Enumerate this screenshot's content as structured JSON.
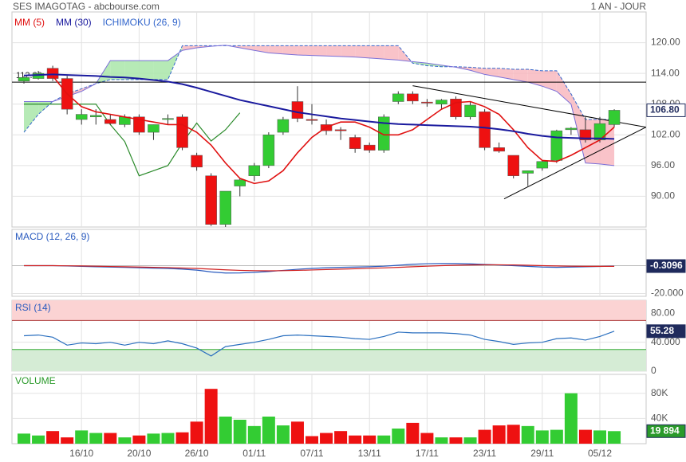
{
  "chart_data": [
    {
      "type": "candlestick",
      "title": "SES IMAGOTAG - abcbourse.com",
      "period": "1 AN - JOUR",
      "open": [
        112.5,
        113,
        115,
        113,
        105,
        105.5,
        105,
        104,
        105.5,
        102.5,
        105,
        105.5,
        98,
        94,
        84.5,
        92,
        94,
        96,
        102.5,
        108.5,
        105,
        104,
        103,
        101.5,
        100,
        99,
        108.5,
        110,
        108.4,
        108,
        109,
        105.5,
        106.5,
        99.5,
        98,
        94.5,
        95.5,
        97,
        103,
        103,
        101,
        104
      ],
      "high": [
        113.5,
        114.5,
        115.5,
        113.5,
        107,
        107,
        106,
        106,
        106,
        104,
        106,
        106,
        98.5,
        94.5,
        91,
        93.5,
        96.5,
        102.5,
        105.5,
        111.5,
        108,
        105,
        103.5,
        102,
        100.5,
        106,
        110.5,
        110.5,
        109,
        109,
        109.5,
        108.5,
        107,
        100.5,
        98,
        95,
        97,
        103,
        103.5,
        105.5,
        105.5,
        107
      ],
      "low": [
        112,
        112.8,
        112.5,
        106,
        104,
        104,
        104,
        103.5,
        102,
        101,
        104,
        99,
        95,
        84.2,
        84,
        90,
        93,
        95.5,
        102,
        104.5,
        104,
        102,
        101,
        98.5,
        98.5,
        98.5,
        108,
        108,
        107.5,
        107,
        105,
        105,
        99,
        98.5,
        93.5,
        92,
        95,
        96.5,
        102,
        100.5,
        100.5,
        103.5
      ],
      "close": [
        113.2,
        114,
        113,
        107,
        106,
        105.8,
        104.2,
        105.5,
        102.5,
        104,
        105.2,
        99.5,
        95.7,
        84.5,
        91,
        93.2,
        96,
        102,
        105,
        105.2,
        104.8,
        102.8,
        102.8,
        99.3,
        99,
        105.5,
        110,
        108.6,
        108.2,
        108.8,
        105.5,
        107.8,
        99.5,
        98.8,
        94,
        95,
        96.8,
        102.8,
        103.3,
        101,
        104.2,
        106.8
      ],
      "up_color": "#33cc33",
      "down_color": "#ee1111",
      "last_value_label": "106.80",
      "series": [
        {
          "name": "MM (5)",
          "color": "#e01010",
          "values": [
            null,
            null,
            113.5,
            110,
            107.5,
            106.5,
            106,
            105.5,
            105,
            104.5,
            104,
            104,
            102.5,
            100,
            96.5,
            93.5,
            92.5,
            93,
            95,
            98.5,
            101.5,
            103.5,
            104.5,
            104.5,
            103.5,
            102,
            102,
            103,
            105,
            107,
            108.3,
            108.5,
            107.5,
            106,
            103,
            99.5,
            97,
            96.8,
            98,
            99.5,
            101,
            103.5
          ]
        },
        {
          "name": "MM (30)",
          "color": "#1a1a9e",
          "values": [
            113.6,
            113.7,
            113.8,
            113.7,
            113.6,
            113.5,
            113.3,
            113.2,
            113,
            112.7,
            112.4,
            111.9,
            111.2,
            110.4,
            109.6,
            108.8,
            108.2,
            107.6,
            107,
            106.4,
            106,
            105.6,
            105.2,
            104.9,
            104.6,
            104.3,
            104.1,
            104,
            103.9,
            103.8,
            103.7,
            103.6,
            103.4,
            103.1,
            102.7,
            102.2,
            101.8,
            101.5,
            101.4,
            101.3,
            101.3,
            101.2
          ]
        }
      ],
      "ichimoku": {
        "name": "ICHIMOKU (26, 9)",
        "color": "#3366cc",
        "span_b_color": "#7a6fd8",
        "lagging_color": "#2a8a2a",
        "bull_fill": "#a9e6a9",
        "bear_fill": "#f8b8c0",
        "span_a": [
          102.5,
          106,
          108.5,
          110,
          111,
          112,
          112.8,
          112.8,
          112.8,
          112.8,
          112.8,
          119.4,
          119.4,
          119.4,
          119.4,
          119.4,
          119.4,
          119.4,
          119.4,
          119.4,
          119.4,
          119.4,
          119.4,
          119.4,
          119.4,
          119.4,
          119.4,
          116,
          115.5,
          115.3,
          115.3,
          115.2,
          115,
          115,
          114.8,
          114.8,
          114.5,
          114.5,
          110,
          105,
          105,
          105
        ],
        "span_b": [
          108.5,
          108.5,
          108.5,
          109.5,
          110.5,
          112,
          116.5,
          116.5,
          116.5,
          116.5,
          116.5,
          118.5,
          119,
          119.3,
          119.5,
          119,
          118.5,
          118,
          117.8,
          117.6,
          117.5,
          117.4,
          117.3,
          117.2,
          117,
          116.8,
          116.6,
          116.3,
          116,
          115.6,
          115.2,
          114.6,
          113.8,
          113.3,
          112.8,
          112.3,
          111.5,
          110.5,
          108,
          96.5,
          96.3,
          96
        ],
        "lagging": [
          108,
          108,
          108,
          108,
          108,
          108,
          104,
          100.7,
          94,
          95,
          96,
          100.4,
          104.3,
          100.8,
          103,
          106.3,
          null,
          null,
          null,
          null,
          null,
          null,
          null,
          null,
          null,
          null,
          null,
          null,
          null,
          null,
          null,
          null,
          null,
          null,
          null,
          null,
          null,
          null,
          null,
          null,
          null,
          null
        ]
      },
      "hlines": [
        {
          "value": 112.3,
          "label": "112.30"
        }
      ],
      "trendlines": [
        {
          "x": [
            27,
            43.2
          ],
          "y": [
            111.6,
            103.5
          ]
        },
        {
          "x": [
            33.35,
            43.2
          ],
          "y": [
            89.5,
            103.5
          ]
        }
      ],
      "ylim": [
        84,
        126
      ],
      "yticks": [
        {
          "value": 90,
          "label": "90.00"
        },
        {
          "value": 96,
          "label": "96.00"
        },
        {
          "value": 102,
          "label": "102.00"
        },
        {
          "value": 108,
          "label": "108.00"
        },
        {
          "value": 114,
          "label": "114.00"
        },
        {
          "value": 120,
          "label": "120.00"
        }
      ],
      "grid": true
    },
    {
      "type": "line",
      "title": "MACD (12, 26, 9)",
      "ylim": [
        -22,
        26
      ],
      "yticks": [
        {
          "value": -20,
          "label": "-20.000"
        }
      ],
      "zero": 0,
      "last_value_label": "-0.3096",
      "tag_color": "#1f2a5c",
      "series": [
        {
          "color": "#2a5bbf",
          "values": [
            0,
            0,
            0,
            -0.2,
            -0.5,
            -0.8,
            -1,
            -1.2,
            -1.5,
            -1.8,
            -2,
            -2.5,
            -3.2,
            -4.5,
            -5.3,
            -5.2,
            -4.8,
            -4.2,
            -3.4,
            -2.6,
            -2,
            -1.5,
            -1.2,
            -1,
            -0.8,
            -0.4,
            0.3,
            1,
            1.4,
            1.5,
            1.5,
            1.3,
            0.9,
            0.5,
            0,
            -0.5,
            -1,
            -1.2,
            -1,
            -0.8,
            -0.6,
            -0.3096
          ]
        },
        {
          "color": "#d02020",
          "values": [
            0,
            0,
            0,
            -0.1,
            -0.2,
            -0.4,
            -0.6,
            -0.8,
            -1,
            -1.2,
            -1.4,
            -1.7,
            -2,
            -2.5,
            -3,
            -3.4,
            -3.6,
            -3.7,
            -3.6,
            -3.4,
            -3.1,
            -2.8,
            -2.5,
            -2.2,
            -1.9,
            -1.6,
            -1.2,
            -0.8,
            -0.4,
            0,
            0.3,
            0.5,
            0.6,
            0.6,
            0.5,
            0.3,
            0,
            -0.2,
            -0.4,
            -0.5,
            -0.5,
            -0.5
          ]
        }
      ]
    },
    {
      "type": "line",
      "title": "RSI (14)",
      "ylim": [
        0,
        98
      ],
      "yticks": [
        0,
        {
          "value": 40,
          "label": "40.000"
        },
        {
          "value": 80,
          "label": "80.00"
        }
      ],
      "overbought": 70,
      "oversold": 30,
      "overbought_fill": "#fbd3d3",
      "oversold_fill": "#d5ecd5",
      "last_value_label": "55.28",
      "tag_color": "#1f2a5c",
      "series": [
        {
          "color": "#2a6fbf",
          "values": [
            49,
            50,
            47,
            36,
            39,
            38,
            40,
            36,
            40,
            38,
            42,
            38,
            32,
            21,
            34,
            37,
            40,
            44,
            49,
            50,
            49,
            48,
            47,
            45,
            44,
            48,
            54,
            53,
            53,
            53,
            52,
            50,
            44,
            41,
            37,
            39,
            40,
            45,
            46,
            43,
            48,
            55.28
          ]
        }
      ]
    },
    {
      "type": "bar",
      "title": "VOLUME",
      "ylim": [
        0,
        110000
      ],
      "yticks": [
        {
          "value": 40000,
          "label": "40K"
        },
        {
          "value": 80000,
          "label": "80K"
        }
      ],
      "categories": [
        null,
        null,
        null,
        null,
        "16/10",
        null,
        null,
        null,
        "20/10",
        null,
        null,
        null,
        "26/10",
        null,
        null,
        null,
        "01/11",
        null,
        null,
        null,
        "07/11",
        null,
        null,
        null,
        "13/11",
        null,
        null,
        null,
        "17/11",
        null,
        null,
        null,
        "23/11",
        null,
        null,
        null,
        "29/11",
        null,
        null,
        null,
        "05/12",
        null
      ],
      "values": [
        16000,
        13000,
        20000,
        10000,
        21000,
        17000,
        17000,
        10000,
        13000,
        16000,
        17000,
        18000,
        35000,
        87000,
        43000,
        38000,
        28000,
        43000,
        29000,
        35000,
        12000,
        17000,
        20000,
        13000,
        13000,
        13000,
        24000,
        33000,
        17000,
        10000,
        10000,
        10000,
        22000,
        29000,
        30000,
        28000,
        21000,
        22000,
        80000,
        22000,
        21000,
        19894
      ],
      "value_labels": [
        null,
        null,
        null,
        null,
        null,
        null,
        null,
        null,
        null,
        null,
        null,
        null,
        null,
        null,
        null,
        null,
        null,
        null,
        null,
        null,
        null,
        null,
        null,
        null,
        null,
        null,
        null,
        null,
        null,
        null,
        null,
        null,
        null,
        null,
        null,
        null,
        null,
        null,
        null,
        null,
        null,
        "19 894"
      ],
      "tag_color": "#2a9a2a"
    }
  ]
}
